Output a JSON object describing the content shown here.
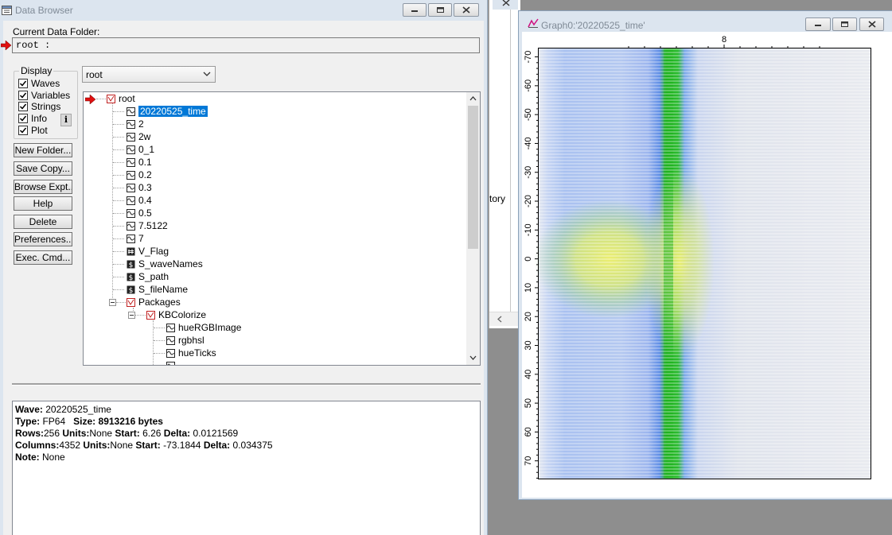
{
  "data_browser": {
    "title": "Data Browser",
    "current_folder_label": "Current Data Folder:",
    "current_folder_value": "root :",
    "display_label": "Display",
    "checkboxes": [
      {
        "label": "Waves",
        "checked": true
      },
      {
        "label": "Variables",
        "checked": true
      },
      {
        "label": "Strings",
        "checked": true
      },
      {
        "label": "Info",
        "checked": true
      },
      {
        "label": "Plot",
        "checked": true
      }
    ],
    "info_icon": "i",
    "folder_select": "root",
    "buttons": [
      "New Folder...",
      "Save Copy...",
      "Browse Expt...",
      "Help",
      "Delete",
      "Preferences...",
      "Exec. Cmd..."
    ],
    "tree": {
      "root_label": "root",
      "items": [
        "20220525_time",
        "2",
        "2w",
        "0_1",
        "0.1",
        "0.2",
        "0.3",
        "0.4",
        "0.5",
        "7.5122",
        "7",
        "V_Flag",
        "S_waveNames",
        "S_path",
        "S_fileName"
      ],
      "packages_label": "Packages",
      "kbcolorize_label": "KBColorize",
      "kb_items": [
        "hueRGBImage",
        "rgbhsl",
        "hueTicks"
      ]
    },
    "info": {
      "wave_key": "Wave:",
      "wave_val": "20220525_time",
      "type_key": "Type:",
      "type_val": "FP64",
      "size_key": "Size:",
      "size_val": "8913216 bytes",
      "rows_key": "Rows:",
      "rows_val": "256",
      "rows_units_key": "Units:",
      "rows_units_val": "None",
      "rows_start_key": "Start:",
      "rows_start_val": "6.26",
      "rows_delta_key": "Delta:",
      "rows_delta_val": "0.0121569",
      "cols_key": "Columns:",
      "cols_val": "4352",
      "cols_units_key": "Units:",
      "cols_units_val": "None",
      "cols_start_key": "Start:",
      "cols_start_val": "-73.1844",
      "cols_delta_key": "Delta:",
      "cols_delta_val": "0.034375",
      "note_key": "Note:",
      "note_val": "None"
    }
  },
  "background_window": {
    "partial_text": "tory"
  },
  "graph": {
    "title": "Graph0:'20220525_time'",
    "top_tick_label": "8",
    "y_ticks": [
      -70,
      -60,
      -50,
      -40,
      -30,
      -20,
      -10,
      0,
      10,
      20,
      30,
      40,
      50,
      60,
      70
    ],
    "colors": {
      "blue": "#4f7fe0",
      "green": "#1fb31f",
      "yellow": "#e8f060",
      "background": "#e6e9f0"
    }
  },
  "chart_data": {
    "type": "heatmap",
    "y_ticks": [
      -70,
      -60,
      -50,
      -40,
      -30,
      -20,
      -10,
      0,
      10,
      20,
      30,
      40,
      50,
      60,
      70
    ],
    "x_ticks": [
      8
    ],
    "ylim": [
      -73.1844,
      76.4156
    ],
    "grid": false
  }
}
